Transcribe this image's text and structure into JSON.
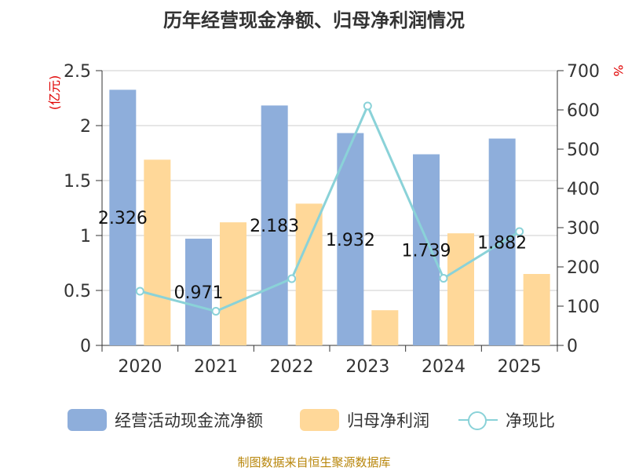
{
  "page": {
    "title": "历年经营现金净额、归母净利润情况",
    "source": "制图数据来自恒生聚源数据库"
  },
  "chart_data": {
    "type": "bar+line",
    "title": "历年经营现金净额、归母净利润情况",
    "categories": [
      "2020",
      "2021",
      "2022",
      "2023",
      "2024",
      "2025"
    ],
    "left_axis": {
      "label": "(亿元)",
      "min": 0,
      "max": 2.5,
      "ticks": [
        "0",
        "0.5",
        "1",
        "1.5",
        "2",
        "2.5"
      ]
    },
    "right_axis": {
      "label": "%",
      "min": 0,
      "max": 700,
      "ticks": [
        "0",
        "100",
        "200",
        "300",
        "400",
        "500",
        "600",
        "700"
      ]
    },
    "series": [
      {
        "name": "经营活动现金流净额",
        "type": "bar",
        "axis": "left",
        "color": "#8eaedb",
        "values": [
          2.326,
          0.971,
          2.183,
          1.932,
          1.739,
          1.882
        ],
        "labels": [
          "2.326",
          "0.971",
          "2.183",
          "1.932",
          "1.739",
          "1.882"
        ]
      },
      {
        "name": "归母净利润",
        "type": "bar",
        "axis": "left",
        "color": "#ffd899",
        "values": [
          1.69,
          1.12,
          1.29,
          0.32,
          1.02,
          0.65
        ]
      },
      {
        "name": "净现比",
        "type": "line",
        "axis": "right",
        "color": "#8ad2d8",
        "values": [
          138,
          87,
          170,
          610,
          171,
          290
        ]
      }
    ]
  }
}
